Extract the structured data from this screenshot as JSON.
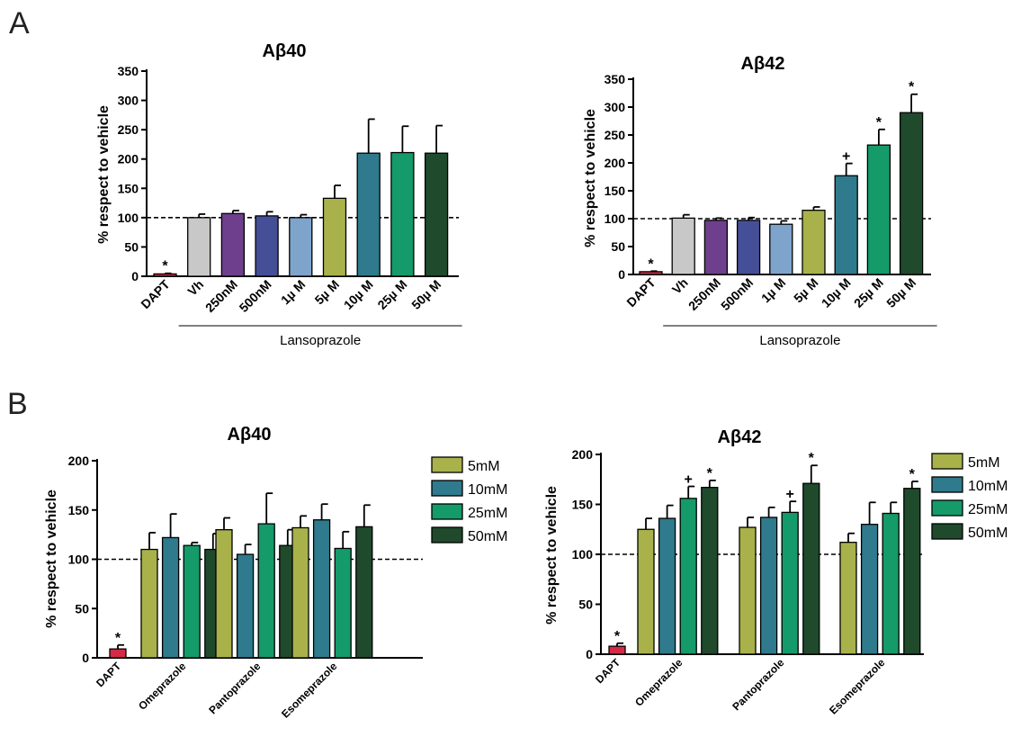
{
  "panels": {
    "a": "A",
    "b": "B"
  },
  "colors": {
    "DAPT": "#d52a46",
    "Vh": "#c8c8c8",
    "250nM": "#6e3f8c",
    "500nM": "#454f98",
    "1µM": "#7fa4cc",
    "5µM": "#a9b24a",
    "10µM": "#2f7a8c",
    "25µM": "#159a6a",
    "50µM": "#1f4a2c",
    "5mM": "#a9b24a",
    "10mM": "#2f7a8c",
    "25mM": "#159a6a",
    "50mM": "#1f4a2c"
  },
  "chart_data": [
    {
      "type": "bar",
      "title": "Aβ40",
      "ylabel": "% respect to vehicle",
      "ylim": [
        0,
        350
      ],
      "yticks": [
        0,
        50,
        100,
        150,
        200,
        250,
        300,
        350
      ],
      "reference_line": 100,
      "categories": [
        "DAPT",
        "Vh",
        "250nM",
        "500nM",
        "1µ M",
        "5µ M",
        "10µ M",
        "25µ M",
        "50µ M"
      ],
      "values": [
        4,
        100,
        107,
        103,
        100,
        133,
        210,
        211,
        210
      ],
      "errors": [
        1,
        6,
        5,
        7,
        5,
        22,
        58,
        45,
        47
      ],
      "markers": [
        "*",
        "",
        "",
        "",
        "",
        "",
        "",
        "",
        ""
      ],
      "group_label": "Lansoprazole"
    },
    {
      "type": "bar",
      "title": "Aβ42",
      "ylabel": "% respect to vehicle",
      "ylim": [
        0,
        350
      ],
      "yticks": [
        0,
        50,
        100,
        150,
        200,
        250,
        300,
        350
      ],
      "reference_line": 100,
      "categories": [
        "DAPT",
        "Vh",
        "250nM",
        "500nM",
        "1µ M",
        "5µ M",
        "10µ M",
        "25µ M",
        "50µ M"
      ],
      "values": [
        5,
        101,
        97,
        97,
        90,
        115,
        177,
        232,
        290
      ],
      "errors": [
        1,
        6,
        4,
        5,
        6,
        6,
        22,
        28,
        33
      ],
      "markers": [
        "*",
        "",
        "",
        "",
        "",
        "",
        "+",
        "*",
        "*"
      ],
      "group_label": "Lansoprazole"
    },
    {
      "type": "bar",
      "title": "Aβ40",
      "ylabel": "% respect to vehicle",
      "ylim": [
        0,
        200
      ],
      "yticks": [
        0,
        50,
        100,
        150,
        200
      ],
      "reference_line": 100,
      "dapt": {
        "label": "DAPT",
        "value": 9,
        "error": 4,
        "marker": "*"
      },
      "categories": [
        "Omeprazole",
        "Pantoprazole",
        "Esomeprazole"
      ],
      "series": [
        {
          "name": "5mM",
          "values": [
            110,
            130,
            132
          ],
          "errors": [
            17,
            12,
            12
          ],
          "markers": [
            "",
            "",
            ""
          ]
        },
        {
          "name": "10mM",
          "values": [
            122,
            105,
            140
          ],
          "errors": [
            24,
            10,
            16
          ],
          "markers": [
            "",
            "",
            ""
          ]
        },
        {
          "name": "25mM",
          "values": [
            114,
            136,
            111
          ],
          "errors": [
            3,
            31,
            17
          ],
          "markers": [
            "",
            "",
            ""
          ]
        },
        {
          "name": "50mM",
          "values": [
            110,
            114,
            133
          ],
          "errors": [
            16,
            16,
            22
          ],
          "markers": [
            "",
            "",
            ""
          ]
        }
      ]
    },
    {
      "type": "bar",
      "title": "Aβ42",
      "ylabel": "% respect to vehicle",
      "ylim": [
        0,
        200
      ],
      "yticks": [
        0,
        50,
        100,
        150,
        200
      ],
      "reference_line": 100,
      "dapt": {
        "label": "DAPT",
        "value": 8,
        "error": 3,
        "marker": "*"
      },
      "categories": [
        "Omeprazole",
        "Pantoprazole",
        "Esomeprazole"
      ],
      "series": [
        {
          "name": "5mM",
          "values": [
            125,
            127,
            112
          ],
          "errors": [
            11,
            10,
            9
          ],
          "markers": [
            "",
            "",
            ""
          ]
        },
        {
          "name": "10mM",
          "values": [
            136,
            137,
            130
          ],
          "errors": [
            13,
            10,
            22
          ],
          "markers": [
            "",
            "",
            ""
          ]
        },
        {
          "name": "25mM",
          "values": [
            156,
            142,
            141
          ],
          "errors": [
            12,
            11,
            11
          ],
          "markers": [
            "+",
            "+",
            ""
          ]
        },
        {
          "name": "50mM",
          "values": [
            167,
            171,
            166
          ],
          "errors": [
            7,
            18,
            7
          ],
          "markers": [
            "*",
            "*",
            "*"
          ]
        }
      ]
    }
  ]
}
